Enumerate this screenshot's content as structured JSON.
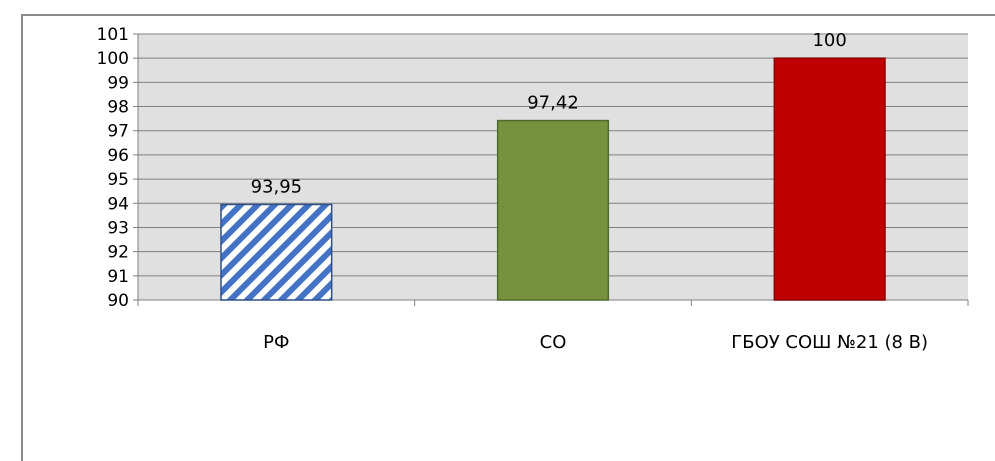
{
  "chart_data": {
    "type": "bar",
    "categories": [
      "РФ",
      "СО",
      "ГБОУ СОШ №21 (8 В)"
    ],
    "values": [
      93.95,
      97.42,
      100
    ],
    "data_labels": [
      "93,95",
      "97,42",
      "100"
    ],
    "ylim": [
      90,
      101
    ],
    "yticks": [
      "90",
      "91",
      "92",
      "93",
      "94",
      "95",
      "96",
      "97",
      "98",
      "99",
      "100",
      "101"
    ],
    "grid": true,
    "legend": "none",
    "bar_styles": [
      {
        "fill": "hatch",
        "colors": [
          "#4472c4",
          "#ffffff"
        ],
        "stroke": "#2e4f8a"
      },
      {
        "fill": "solid",
        "colors": [
          "#76923c"
        ],
        "stroke": "#4e6a2a"
      },
      {
        "fill": "solid",
        "colors": [
          "#c00000"
        ],
        "stroke": "#8a0000"
      }
    ],
    "plot_background": "#e0e0e0",
    "gridline_color": "#808080"
  }
}
